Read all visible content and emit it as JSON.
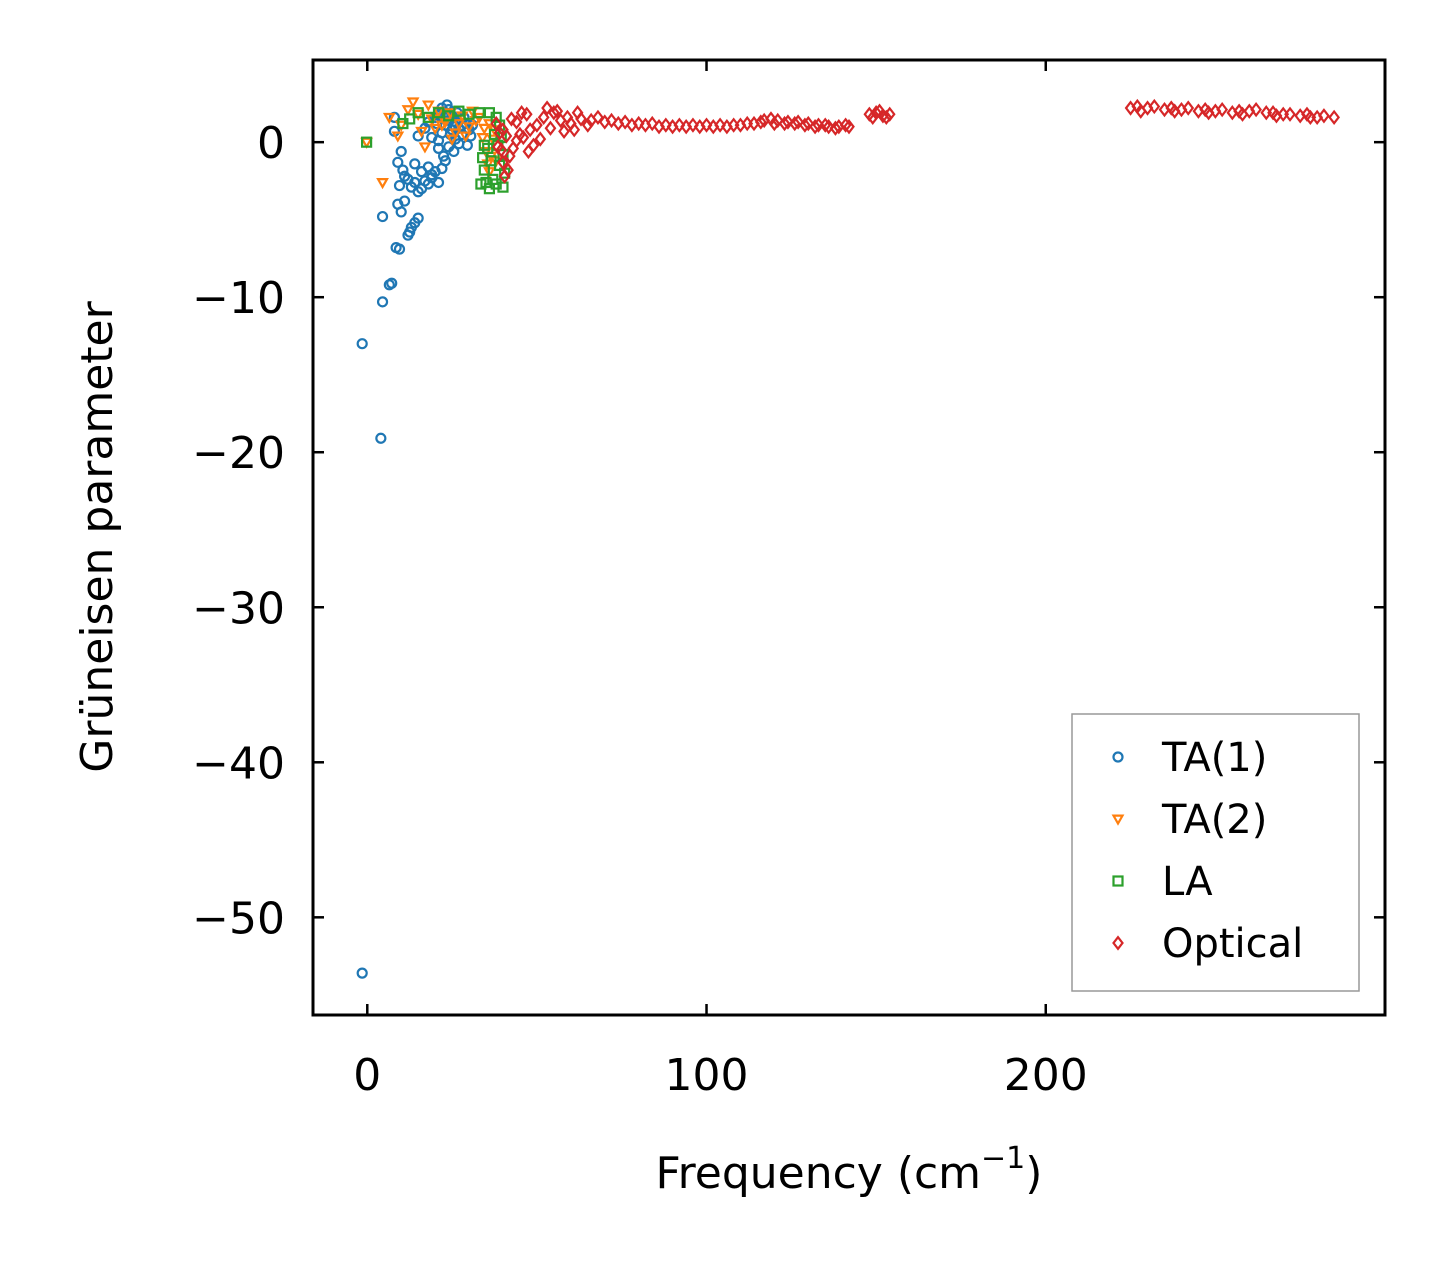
{
  "chart_data": {
    "type": "scatter",
    "title": "",
    "xlabel": "Frequency (cm",
    "xlabel_sup": "−1",
    "xlabel_close": ")",
    "ylabel": "Grüneisen parameter",
    "xlim": [
      -16,
      300
    ],
    "ylim": [
      -56.3,
      5.3
    ],
    "xticks": [
      0,
      100,
      200
    ],
    "xtick_labels": [
      "0",
      "100",
      "200"
    ],
    "yticks": [
      0,
      -10,
      -20,
      -30,
      -40,
      -50
    ],
    "ytick_labels": [
      "0",
      "−10",
      "−20",
      "−30",
      "−40",
      "−50"
    ],
    "grid": false,
    "legend_position": "bottom-right",
    "series": [
      {
        "name": "TA(1)",
        "marker": "circle",
        "color": "#1f77b4",
        "points": [
          [
            -1.5,
            -53.6
          ],
          [
            -1.5,
            -13
          ],
          [
            4,
            -19.1
          ],
          [
            4.5,
            -10.3
          ],
          [
            4.5,
            -4.8
          ],
          [
            6.5,
            -9.2
          ],
          [
            7.2,
            -9.1
          ],
          [
            8.5,
            -6.8
          ],
          [
            9.5,
            -6.9
          ],
          [
            9,
            -4
          ],
          [
            10,
            -4.5
          ],
          [
            11,
            -3.8
          ],
          [
            12,
            -6
          ],
          [
            12.5,
            -5.8
          ],
          [
            13,
            -5.5
          ],
          [
            14,
            -5.2
          ],
          [
            15,
            -4.9
          ],
          [
            8,
            0.7
          ],
          [
            8,
            1.6
          ],
          [
            9,
            -1.3
          ],
          [
            10,
            -0.6
          ],
          [
            10.5,
            -1.8
          ],
          [
            11,
            -2.2
          ],
          [
            9.5,
            -2.8
          ],
          [
            12,
            -2.4
          ],
          [
            13,
            -2.9
          ],
          [
            14,
            -2.6
          ],
          [
            15,
            -3.2
          ],
          [
            16,
            -3
          ],
          [
            17,
            -2.5
          ],
          [
            18,
            -2.7
          ],
          [
            19,
            -2.3
          ],
          [
            20,
            -1.9
          ],
          [
            21,
            -2.6
          ],
          [
            14,
            -1.4
          ],
          [
            16,
            -1.9
          ],
          [
            18,
            -1.6
          ],
          [
            19,
            -2.1
          ],
          [
            22,
            -1.7
          ],
          [
            23,
            -1.2
          ],
          [
            15,
            0.4
          ],
          [
            17,
            0.9
          ],
          [
            18,
            1.3
          ],
          [
            20,
            1.6
          ],
          [
            19,
            0.3
          ],
          [
            21,
            -0.4
          ],
          [
            22,
            0.6
          ],
          [
            23,
            1.1
          ],
          [
            24,
            1.4
          ],
          [
            25,
            0.8
          ],
          [
            26,
            0.2
          ],
          [
            22,
            2.2
          ],
          [
            23,
            1.9
          ],
          [
            24,
            2.1
          ],
          [
            25,
            1.7
          ],
          [
            26,
            1.3
          ],
          [
            27,
            0.9
          ],
          [
            28,
            0.5
          ],
          [
            29,
            1.2
          ],
          [
            30,
            0.8
          ],
          [
            21,
            0.1
          ],
          [
            22.5,
            -0.9
          ],
          [
            24,
            -0.3
          ],
          [
            25.5,
            -0.6
          ],
          [
            27,
            -0.1
          ],
          [
            23.5,
            2.4
          ],
          [
            26.5,
            1.9
          ],
          [
            28.5,
            1.6
          ],
          [
            30.5,
            0.4
          ],
          [
            31,
            1.1
          ],
          [
            24.5,
            0.5
          ],
          [
            26,
            1
          ],
          [
            27.5,
            1.5
          ],
          [
            29.5,
            -0.2
          ],
          [
            20.5,
            1.2
          ],
          [
            21.5,
            1.8
          ]
        ]
      },
      {
        "name": "TA(2)",
        "marker": "triangle-down",
        "color": "#ff7f0e",
        "points": [
          [
            -0.2,
            0
          ],
          [
            4.5,
            -2.6
          ],
          [
            6.5,
            1.6
          ],
          [
            9,
            0.4
          ],
          [
            10,
            1.1
          ],
          [
            12,
            2.1
          ],
          [
            13.5,
            2.6
          ],
          [
            15,
            1.8
          ],
          [
            16,
            0.7
          ],
          [
            18,
            2.4
          ],
          [
            17,
            -0.3
          ],
          [
            19,
            1.5
          ],
          [
            20,
            0.9
          ],
          [
            21,
            2
          ],
          [
            23,
            1.3
          ],
          [
            24.5,
            1.9
          ],
          [
            26,
            0.6
          ],
          [
            28,
            1.7
          ],
          [
            30,
            1
          ],
          [
            32,
            1.4
          ],
          [
            34,
            0.3
          ],
          [
            35,
            -0.6
          ],
          [
            35.5,
            -1.4
          ],
          [
            36,
            -1.9
          ],
          [
            36.5,
            -0.9
          ],
          [
            37,
            0.2
          ],
          [
            37.5,
            0.8
          ],
          [
            38,
            -1.2
          ],
          [
            36,
            1.2
          ],
          [
            34.5,
            0.9
          ],
          [
            33,
            1.6
          ],
          [
            31,
            2
          ],
          [
            29,
            0.4
          ],
          [
            27,
            1.2
          ],
          [
            25,
            0.2
          ],
          [
            22,
            1.1
          ]
        ]
      },
      {
        "name": "LA",
        "marker": "square",
        "color": "#2ca02c",
        "points": [
          [
            -0.2,
            0
          ],
          [
            10.5,
            1.2
          ],
          [
            12.5,
            1.5
          ],
          [
            15,
            1.9
          ],
          [
            18,
            1.6
          ],
          [
            21,
            1.9
          ],
          [
            24,
            1.7
          ],
          [
            27,
            2
          ],
          [
            30,
            1.8
          ],
          [
            33,
            1.9
          ],
          [
            36,
            1.9
          ],
          [
            38,
            1.6
          ],
          [
            39,
            1.1
          ],
          [
            34.5,
            -0.2
          ],
          [
            34,
            -1
          ],
          [
            34.5,
            -1.8
          ],
          [
            35,
            -2.6
          ],
          [
            36,
            -3
          ],
          [
            37,
            -2.4
          ],
          [
            38,
            -2.7
          ],
          [
            39,
            -1.5
          ],
          [
            40,
            -0.8
          ],
          [
            40.5,
            -2
          ],
          [
            38.5,
            -0.2
          ],
          [
            37.5,
            0.5
          ],
          [
            36.5,
            -1.2
          ],
          [
            35.5,
            -0.4
          ],
          [
            39.5,
            0.3
          ],
          [
            40,
            -2.9
          ],
          [
            33.5,
            -2.7
          ]
        ]
      },
      {
        "name": "Optical",
        "marker": "diamond",
        "color": "#d62728",
        "points": [
          [
            38,
            1.2
          ],
          [
            39,
            0.6
          ],
          [
            39.5,
            -0.5
          ],
          [
            40,
            -1.3
          ],
          [
            40.5,
            -2.2
          ],
          [
            41.5,
            -1.8
          ],
          [
            42,
            -0.9
          ],
          [
            43,
            -0.4
          ],
          [
            44,
            0.1
          ],
          [
            45,
            0.5
          ],
          [
            46,
            0.3
          ],
          [
            48,
            0.8
          ],
          [
            50,
            1.1
          ],
          [
            52,
            1.6
          ],
          [
            53,
            2.2
          ],
          [
            55,
            1.9
          ],
          [
            57,
            1.4
          ],
          [
            58,
            0.7
          ],
          [
            60,
            1.2
          ],
          [
            61,
            0.8
          ],
          [
            63,
            1.5
          ],
          [
            66,
            1.4
          ],
          [
            70,
            1.3
          ],
          [
            74,
            1.2
          ],
          [
            78,
            1.1
          ],
          [
            82,
            1.1
          ],
          [
            86,
            1
          ],
          [
            90,
            1
          ],
          [
            94,
            1
          ],
          [
            98,
            1
          ],
          [
            102,
            1
          ],
          [
            106,
            1
          ],
          [
            110,
            1.1
          ],
          [
            114,
            1.2
          ],
          [
            117,
            1.4
          ],
          [
            119,
            1.5
          ],
          [
            121,
            1.4
          ],
          [
            124,
            1.3
          ],
          [
            127,
            1.3
          ],
          [
            130,
            1.2
          ],
          [
            133,
            1.1
          ],
          [
            136,
            1
          ],
          [
            139,
            1
          ],
          [
            142,
            1
          ],
          [
            148,
            1.8
          ],
          [
            150,
            1.9
          ],
          [
            152,
            1.7
          ],
          [
            154,
            1.8
          ],
          [
            225,
            2.2
          ],
          [
            230,
            2.2
          ],
          [
            235,
            2.1
          ],
          [
            240,
            2.1
          ],
          [
            245,
            2
          ],
          [
            250,
            2
          ],
          [
            255,
            1.9
          ],
          [
            260,
            2
          ],
          [
            265,
            1.9
          ],
          [
            270,
            1.8
          ],
          [
            275,
            1.7
          ],
          [
            280,
            1.6
          ],
          [
            285,
            1.6
          ],
          [
            38.5,
            -0.3
          ],
          [
            41,
            0.4
          ],
          [
            44,
            1.3
          ],
          [
            47,
            1.8
          ],
          [
            49,
            -0.2
          ],
          [
            51,
            0.2
          ],
          [
            54,
            0.9
          ],
          [
            56,
            2
          ],
          [
            59,
            1.6
          ],
          [
            62,
            1.9
          ],
          [
            65,
            1.1
          ],
          [
            68,
            1.6
          ],
          [
            72,
            1.4
          ],
          [
            76,
            1.3
          ],
          [
            80,
            1.2
          ],
          [
            84,
            1.2
          ],
          [
            88,
            1.1
          ],
          [
            92,
            1.1
          ],
          [
            96,
            1.1
          ],
          [
            100,
            1.1
          ],
          [
            104,
            1.1
          ],
          [
            108,
            1.1
          ],
          [
            112,
            1.2
          ],
          [
            116,
            1.3
          ],
          [
            120,
            1.2
          ],
          [
            123,
            1.2
          ],
          [
            126,
            1.2
          ],
          [
            129,
            1.1
          ],
          [
            132,
            1
          ],
          [
            135,
            1.1
          ],
          [
            138,
            0.9
          ],
          [
            141,
            1.1
          ],
          [
            149,
            1.6
          ],
          [
            151,
            2
          ],
          [
            153,
            1.6
          ],
          [
            227,
            2.3
          ],
          [
            232,
            2.3
          ],
          [
            237,
            2.2
          ],
          [
            242,
            2.2
          ],
          [
            247,
            2.1
          ],
          [
            252,
            2.1
          ],
          [
            257,
            2
          ],
          [
            262,
            2.1
          ],
          [
            267,
            1.9
          ],
          [
            272,
            1.8
          ],
          [
            277,
            1.8
          ],
          [
            282,
            1.7
          ],
          [
            228,
            2
          ],
          [
            238,
            2
          ],
          [
            248,
            1.9
          ],
          [
            258,
            1.8
          ],
          [
            268,
            1.7
          ],
          [
            278,
            1.6
          ],
          [
            40,
            0.8
          ],
          [
            42.5,
            1.5
          ],
          [
            45.5,
            1.9
          ],
          [
            47.5,
            -0.6
          ]
        ]
      }
    ]
  }
}
